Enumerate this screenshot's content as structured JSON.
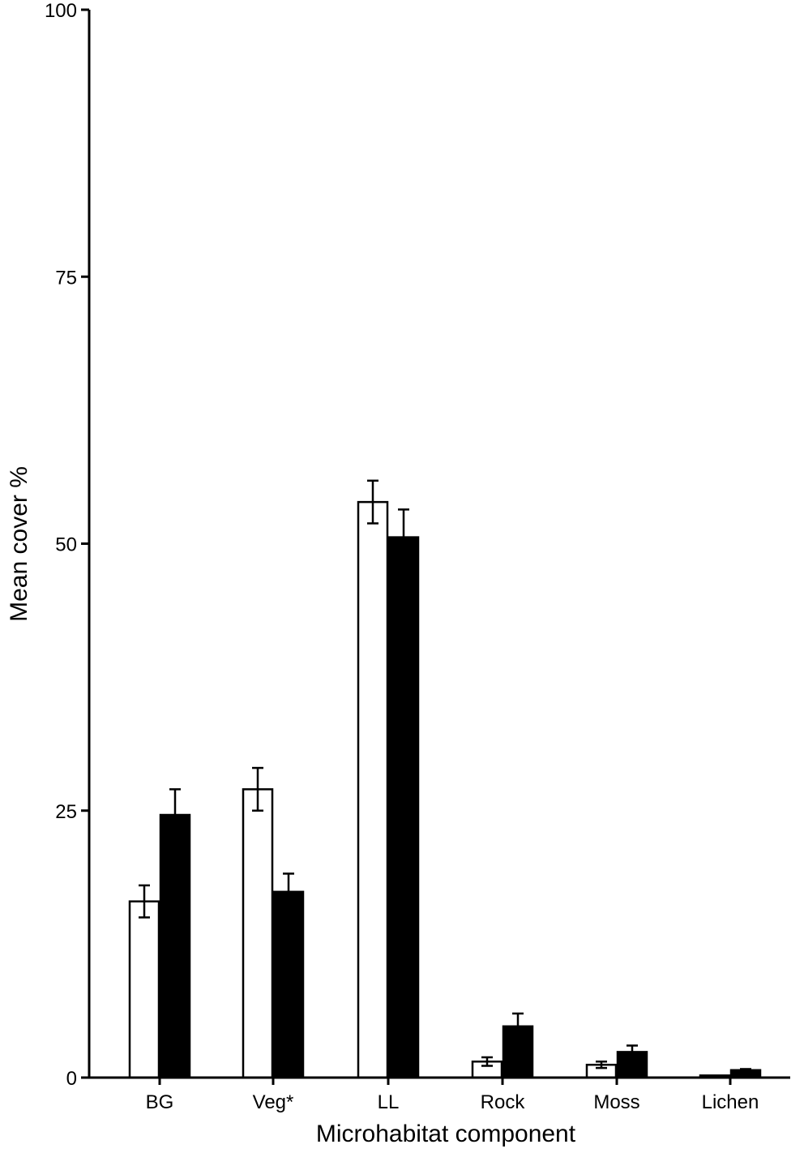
{
  "chart_data": {
    "type": "bar",
    "title": "",
    "xlabel": "Microhabitat component",
    "ylabel": "Mean cover %",
    "ylim": [
      0,
      100
    ],
    "yticks": [
      0,
      25,
      50,
      75,
      100
    ],
    "grid": false,
    "legend": "none",
    "categories": [
      "BG",
      "Veg*",
      "LL",
      "Rock",
      "Moss",
      "Lichen"
    ],
    "series": [
      {
        "fill": "#ffffff",
        "values": [
          16.5,
          27.0,
          53.9,
          1.5,
          1.2,
          0.2
        ],
        "errors": [
          1.5,
          2.0,
          2.0,
          0.4,
          0.3,
          0.0
        ]
      },
      {
        "fill": "#000000",
        "values": [
          24.6,
          17.4,
          50.6,
          4.8,
          2.4,
          0.7
        ],
        "errors": [
          2.4,
          1.7,
          2.6,
          1.2,
          0.6,
          0.1
        ]
      }
    ]
  }
}
